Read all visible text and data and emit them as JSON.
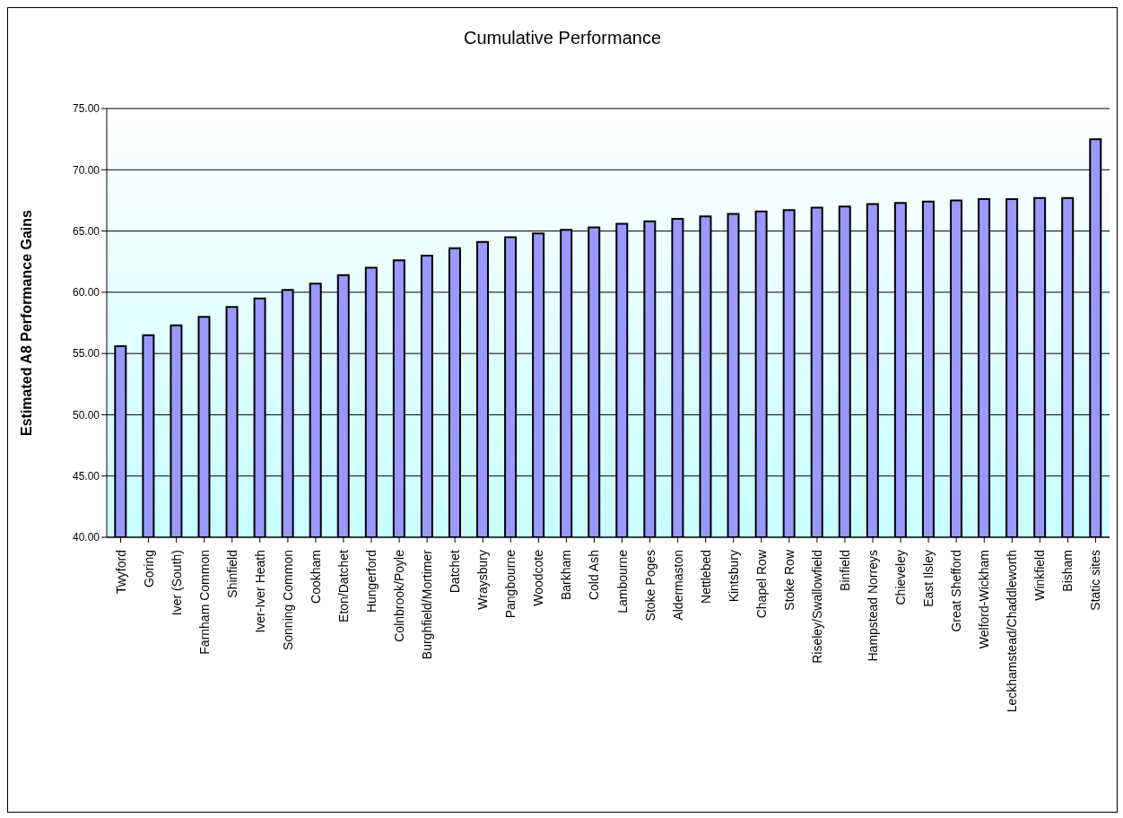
{
  "chart_data": {
    "type": "bar",
    "title": "Cumulative Performance",
    "ylabel": "Estimated A8 Performance Gains",
    "categories": [
      "Twyford",
      "Goring",
      "Iver (South)",
      "Farnham Common",
      "Shinfield",
      "Iver-Iver Heath",
      "Sonning Common",
      "Cookham",
      "Eton/Datchet",
      "Hungerford",
      "Colnbrook/Poyle",
      "Burghfield/Mortimer",
      "Datchet",
      "Wraysbury",
      "Pangbourne",
      "Woodcote",
      "Barkham",
      "Cold Ash",
      "Lambourne",
      "Stoke Poges",
      "Aldermaston",
      "Nettlebed",
      "Kintsbury",
      "Chapel Row",
      "Stoke Row",
      "Riseley/Swallowfield",
      "Binfield",
      "Hampstead Norreys",
      "Chieveley",
      "East Ilsley",
      "Great Shefford",
      "Welford-Wickham",
      "Leckhamstead/Chaddleworth",
      "Winkfield",
      "Bisham",
      "Static sites"
    ],
    "values": [
      55.6,
      56.5,
      57.3,
      58.0,
      58.8,
      59.5,
      60.2,
      60.7,
      61.4,
      62.0,
      62.6,
      63.0,
      63.6,
      64.1,
      64.5,
      64.8,
      65.1,
      65.3,
      65.6,
      65.8,
      66.0,
      66.2,
      66.4,
      66.6,
      66.7,
      66.9,
      67.0,
      67.2,
      67.3,
      67.4,
      67.5,
      67.6,
      67.6,
      67.7,
      67.7,
      72.5
    ],
    "color": "#9999ff",
    "ylim": [
      40,
      75
    ],
    "yticks": [
      {
        "value": 40,
        "label": "40.00"
      },
      {
        "value": 45,
        "label": "45.00"
      },
      {
        "value": 50,
        "label": "50.00"
      },
      {
        "value": 55,
        "label": "55.00"
      },
      {
        "value": 60,
        "label": "60.00"
      },
      {
        "value": 65,
        "label": "65.00"
      },
      {
        "value": 70,
        "label": "70.00"
      },
      {
        "value": 75,
        "label": "75.00"
      }
    ],
    "grid": "y",
    "legend": false
  }
}
